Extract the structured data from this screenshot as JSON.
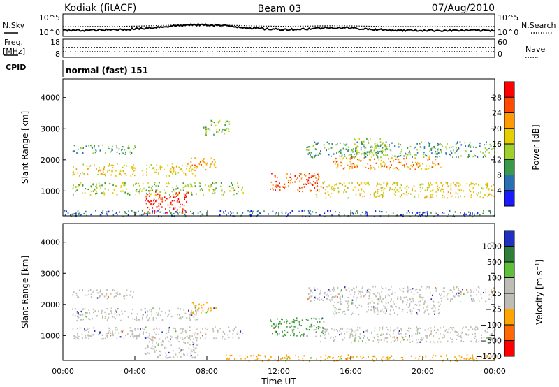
{
  "header": {
    "station": "Kodiak (fitACF)",
    "beam": "Beam 03",
    "date": "07/Aug/2010"
  },
  "noise_panel": {
    "left_label": "N.Sky",
    "right_label": "N.Search",
    "tick_top": "10^5",
    "tick_bottom": "10^0"
  },
  "freq_panel": {
    "left_label_1": "Freq.",
    "left_label_2": "[MHz]",
    "left_ticks": [
      "18",
      "8"
    ],
    "right_label": "Nave",
    "right_ticks": [
      "60",
      "0"
    ]
  },
  "cpid_panel": {
    "label": "CPID",
    "mode": "normal (fast) 151"
  },
  "chart_data": [
    {
      "type": "heatmap",
      "title": "",
      "xlabel": "Time UT",
      "ylabel": "Slant Range [km]",
      "x_ticks": [
        "00:00",
        "04:00",
        "08:00",
        "12:00",
        "16:00",
        "20:00",
        "00:00"
      ],
      "y_ticks": [
        "1000",
        "2000",
        "3000",
        "4000"
      ],
      "ylim": [
        200,
        4600
      ],
      "xlim_hours": [
        0,
        24
      ],
      "colorbar": {
        "label": "Power [dB]",
        "ticks": [
          "28",
          "24",
          "20",
          "16",
          "12",
          "8",
          "4"
        ],
        "colors": [
          "#ff0000",
          "#ff4a00",
          "#ff9a00",
          "#e4cf00",
          "#9fd02c",
          "#3a9a4a",
          "#2a6fb0",
          "#1a1aff"
        ]
      },
      "echo_regions": [
        {
          "t": [
            0.5,
            7.5
          ],
          "r": [
            1500,
            1900
          ],
          "level": 4
        },
        {
          "t": [
            0.5,
            4.0
          ],
          "r": [
            2200,
            2500
          ],
          "level": 2
        },
        {
          "t": [
            4.5,
            7.0
          ],
          "r": [
            300,
            1000
          ],
          "level": 7
        },
        {
          "t": [
            7.0,
            8.5
          ],
          "r": [
            1700,
            2100
          ],
          "level": 5
        },
        {
          "t": [
            7.8,
            9.3
          ],
          "r": [
            2800,
            3300
          ],
          "level": 3
        },
        {
          "t": [
            0.5,
            10.0
          ],
          "r": [
            900,
            1300
          ],
          "level": 3
        },
        {
          "t": [
            11.5,
            14.5
          ],
          "r": [
            1000,
            1600
          ],
          "level": 6
        },
        {
          "t": [
            14.0,
            24.0
          ],
          "r": [
            800,
            1300
          ],
          "level": 4
        },
        {
          "t": [
            15.0,
            21.0
          ],
          "r": [
            1700,
            2100
          ],
          "level": 5
        },
        {
          "t": [
            16.0,
            18.0
          ],
          "r": [
            2100,
            2700
          ],
          "level": 3
        },
        {
          "t": [
            13.5,
            24.0
          ],
          "r": [
            2100,
            2600
          ],
          "level": 2
        },
        {
          "t": [
            0.0,
            24.0
          ],
          "r": [
            200,
            400
          ],
          "level": 1
        }
      ]
    },
    {
      "type": "heatmap",
      "title": "",
      "xlabel": "Time UT",
      "ylabel": "Slant Range [km]",
      "x_ticks": [
        "00:00",
        "04:00",
        "08:00",
        "12:00",
        "16:00",
        "20:00",
        "00:00"
      ],
      "y_ticks": [
        "1000",
        "2000",
        "3000",
        "4000"
      ],
      "ylim": [
        200,
        4600
      ],
      "xlim_hours": [
        0,
        24
      ],
      "colorbar": {
        "label": "Velocity [m s^-1]",
        "ticks": [
          "1000",
          "500",
          "100",
          "25",
          "−25",
          "−100",
          "−500",
          "−1000"
        ],
        "colors": [
          "#2030c0",
          "#2f7d3a",
          "#5fbf3a",
          "#bdbdb5",
          "#bdbdb5",
          "#ffa500",
          "#ff6a00",
          "#ff0000"
        ]
      },
      "echo_regions": [
        {
          "t": [
            0.5,
            7.5
          ],
          "r": [
            1500,
            1900
          ],
          "level": "gray"
        },
        {
          "t": [
            0.5,
            4.0
          ],
          "r": [
            2200,
            2500
          ],
          "level": "gray"
        },
        {
          "t": [
            4.5,
            7.5
          ],
          "r": [
            300,
            1000
          ],
          "level": "gray"
        },
        {
          "t": [
            7.0,
            8.5
          ],
          "r": [
            1700,
            2100
          ],
          "level": "orange"
        },
        {
          "t": [
            0.5,
            10.0
          ],
          "r": [
            900,
            1300
          ],
          "level": "gray"
        },
        {
          "t": [
            11.5,
            14.5
          ],
          "r": [
            1000,
            1600
          ],
          "level": "green"
        },
        {
          "t": [
            14.0,
            24.0
          ],
          "r": [
            800,
            1300
          ],
          "level": "gray"
        },
        {
          "t": [
            15.0,
            21.0
          ],
          "r": [
            1700,
            2100
          ],
          "level": "gray"
        },
        {
          "t": [
            13.5,
            24.0
          ],
          "r": [
            2100,
            2600
          ],
          "level": "gray"
        },
        {
          "t": [
            9.0,
            24.0
          ],
          "r": [
            200,
            400
          ],
          "level": "orange"
        }
      ]
    }
  ]
}
